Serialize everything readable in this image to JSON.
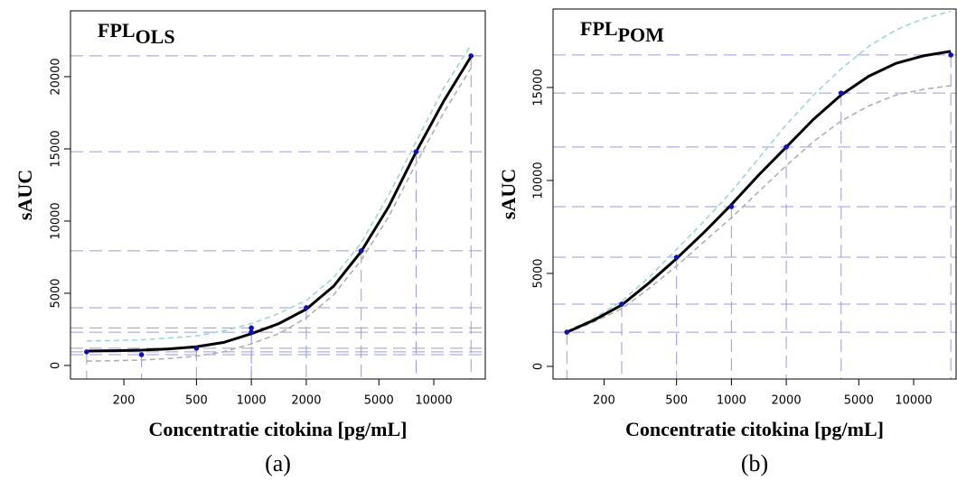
{
  "chart_data": [
    {
      "type": "scatter-fit",
      "title": "FPL",
      "title_sub": "OLS",
      "caption": "(a)",
      "x_label": "Concentratie citokina [pg/mL]",
      "y_label": "sAUC",
      "log_x": true,
      "xlim": [
        102,
        19150
      ],
      "ylim": [
        -940,
        24560
      ],
      "xticks": [
        200,
        500,
        1000,
        2000,
        5000,
        10000
      ],
      "yticks": [
        0,
        5000,
        10000,
        15000,
        20000
      ],
      "guides": true,
      "guide_color": "#9a9ae0",
      "points": {
        "color": "#1010c0",
        "x": [
          125,
          250,
          500,
          1000,
          1000,
          2000,
          4000,
          8000,
          16000
        ],
        "values": [
          940,
          750,
          1190,
          2600,
          2300,
          4000,
          7940,
          14800,
          21440
        ]
      },
      "fit": {
        "x": [
          125,
          177,
          250,
          354,
          500,
          707,
          1000,
          1414,
          2000,
          2828,
          4000,
          5657,
          8000,
          11314,
          16000
        ],
        "series": [
          {
            "color": "#9ad8d8",
            "dashed": true,
            "values": [
              1700,
              1720,
              1780,
              1900,
              2050,
              2400,
              2900,
              3600,
              4500,
              6100,
              8500,
              11800,
              15500,
              19200,
              22200
            ]
          },
          {
            "color": "#b0b0b0",
            "dashed": true,
            "values": [
              300,
              330,
              380,
              480,
              650,
              950,
              1500,
              2200,
              3300,
              4900,
              7300,
              10300,
              14000,
              17500,
              20600
            ]
          },
          {
            "color": "#000000",
            "dashed": false,
            "values": [
              1000,
              1020,
              1060,
              1150,
              1300,
              1600,
              2200,
              2900,
              3900,
              5500,
              7900,
              11000,
              14800,
              18300,
              21400
            ]
          }
        ]
      }
    },
    {
      "type": "scatter-fit",
      "title": "FPL",
      "title_sub": "POM",
      "caption": "(b)",
      "x_label": "Concentratie citokina [pg/mL]",
      "y_label": "sAUC",
      "log_x": true,
      "xlim": [
        105,
        17100
      ],
      "ylim": [
        -680,
        19220
      ],
      "xticks": [
        200,
        500,
        1000,
        2000,
        5000,
        10000
      ],
      "yticks": [
        0,
        5000,
        10000,
        15000
      ],
      "guides": true,
      "guide_color": "#9a9ae0",
      "points": {
        "color": "#1010c0",
        "x": [
          125,
          250,
          500,
          1000,
          2000,
          4000,
          16000
        ],
        "values": [
          1840,
          3350,
          5870,
          8590,
          11800,
          14700,
          16750
        ]
      },
      "fit": {
        "x": [
          125,
          177,
          250,
          354,
          500,
          707,
          1000,
          1414,
          2000,
          2828,
          4000,
          5657,
          8000,
          11314,
          16000
        ],
        "series": [
          {
            "color": "#9ad8d8",
            "dashed": true,
            "values": [
              1900,
              2600,
              3500,
              4800,
              6300,
              7800,
              9400,
              11200,
              13000,
              14600,
              16000,
              17200,
              18100,
              18700,
              19100
            ]
          },
          {
            "color": "#b0b0b0",
            "dashed": true,
            "values": [
              1800,
              2400,
              3100,
              4200,
              5400,
              6700,
              8000,
              9400,
              10800,
              12100,
              13200,
              14000,
              14600,
              14900,
              15100
            ]
          },
          {
            "color": "#000000",
            "dashed": false,
            "values": [
              1840,
              2500,
              3300,
              4500,
              5800,
              7200,
              8700,
              10300,
              11800,
              13300,
              14600,
              15600,
              16300,
              16700,
              16950
            ]
          }
        ]
      }
    }
  ]
}
